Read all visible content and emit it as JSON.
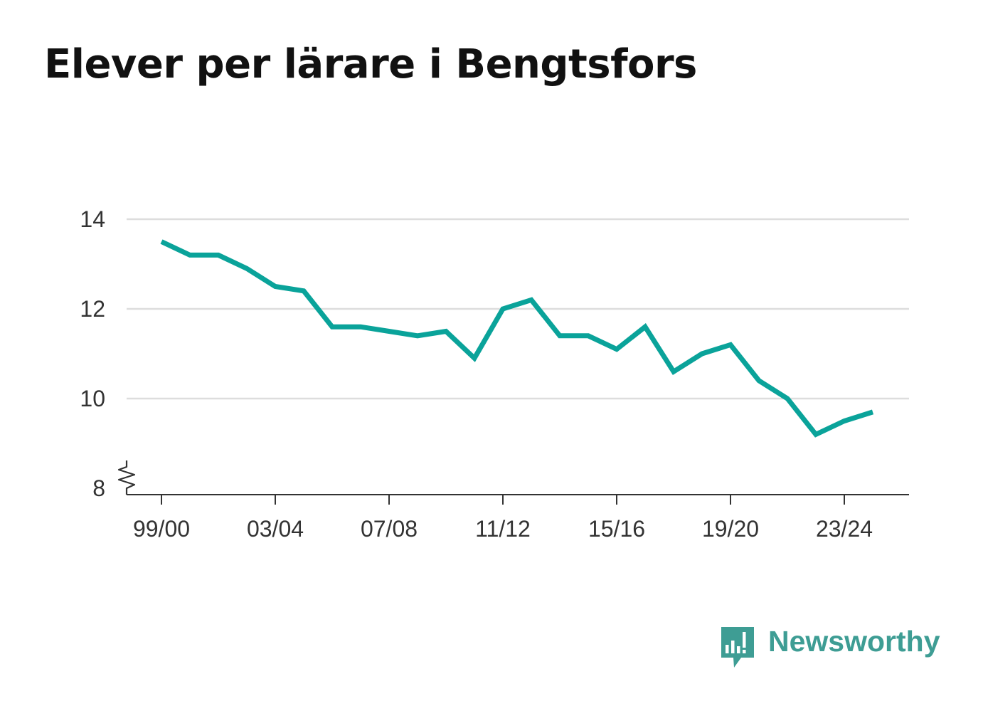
{
  "title": "Elever per lärare i Bengtsfors",
  "brand": {
    "name": "Newsworthy",
    "color": "#3e9d94",
    "icon": "newsworthy-logo-icon"
  },
  "colors": {
    "line": "#0aa39a",
    "grid": "#dddddd",
    "axis": "#333333"
  },
  "chart_data": {
    "type": "line",
    "title": "Elever per lärare i Bengtsfors",
    "xlabel": "",
    "ylabel": "",
    "categories": [
      "99/00",
      "00/01",
      "01/02",
      "02/03",
      "03/04",
      "04/05",
      "05/06",
      "06/07",
      "07/08",
      "08/09",
      "09/10",
      "10/11",
      "11/12",
      "12/13",
      "13/14",
      "14/15",
      "15/16",
      "16/17",
      "17/18",
      "18/19",
      "19/20",
      "20/21",
      "21/22",
      "22/23",
      "23/24",
      "24/25"
    ],
    "series": [
      {
        "values": [
          13.5,
          13.2,
          13.2,
          12.9,
          12.5,
          12.4,
          11.6,
          11.6,
          11.5,
          11.4,
          11.5,
          10.9,
          12.0,
          12.2,
          11.4,
          11.4,
          11.1,
          11.6,
          10.6,
          11.0,
          11.2,
          10.4,
          10.0,
          9.2,
          9.5,
          9.7
        ]
      }
    ],
    "x_tick_labels": [
      "99/00",
      "03/04",
      "07/08",
      "11/12",
      "15/16",
      "19/20",
      "23/24"
    ],
    "y_ticks": [
      8,
      10,
      12,
      14
    ],
    "ylim": [
      8,
      14
    ],
    "y_axis_break": true,
    "grid": true,
    "legend": "none"
  }
}
